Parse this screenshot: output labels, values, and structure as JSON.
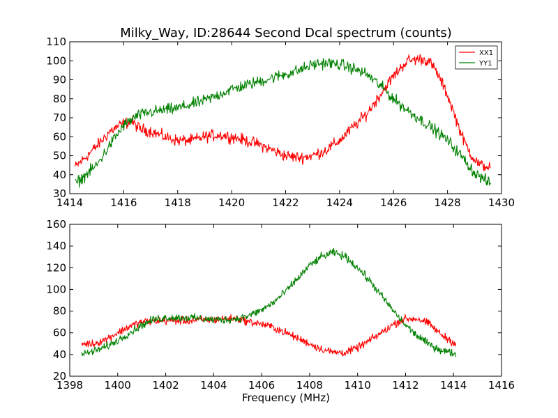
{
  "chart_data": [
    {
      "type": "line",
      "title": "Milky_Way, ID:28644 Second Dcal spectrum (counts)",
      "xlabel": "",
      "ylabel": "",
      "xlim": [
        1414,
        1430
      ],
      "ylim": [
        30,
        110
      ],
      "xticks": [
        "1414",
        "1416",
        "1418",
        "1420",
        "1422",
        "1424",
        "1426",
        "1428",
        "1430"
      ],
      "yticks": [
        "30",
        "40",
        "50",
        "60",
        "70",
        "80",
        "90",
        "100",
        "110"
      ],
      "legend": "top-right",
      "x_range": [
        1414.2,
        1429.6
      ],
      "noise": 2.2,
      "series": [
        {
          "name": "XX1",
          "color": "#ff0000",
          "points": [
            [
              1414.2,
              44
            ],
            [
              1414.5,
              48
            ],
            [
              1415.0,
              55
            ],
            [
              1415.5,
              63
            ],
            [
              1416.0,
              67
            ],
            [
              1416.3,
              68
            ],
            [
              1416.6,
              64
            ],
            [
              1417.0,
              63
            ],
            [
              1417.5,
              60
            ],
            [
              1418.0,
              58
            ],
            [
              1418.5,
              58
            ],
            [
              1419.0,
              60
            ],
            [
              1419.5,
              61
            ],
            [
              1420.0,
              60
            ],
            [
              1420.5,
              58
            ],
            [
              1421.0,
              56
            ],
            [
              1421.5,
              53
            ],
            [
              1422.0,
              50
            ],
            [
              1422.5,
              49
            ],
            [
              1423.0,
              50
            ],
            [
              1423.5,
              53
            ],
            [
              1424.0,
              58
            ],
            [
              1424.5,
              65
            ],
            [
              1425.0,
              72
            ],
            [
              1425.5,
              82
            ],
            [
              1426.0,
              92
            ],
            [
              1426.5,
              100
            ],
            [
              1427.0,
              101
            ],
            [
              1427.3,
              100
            ],
            [
              1427.6,
              94
            ],
            [
              1428.0,
              82
            ],
            [
              1428.3,
              70
            ],
            [
              1428.6,
              58
            ],
            [
              1428.9,
              50
            ],
            [
              1429.2,
              45
            ],
            [
              1429.6,
              44
            ]
          ]
        },
        {
          "name": "YY1",
          "color": "#008000",
          "points": [
            [
              1414.2,
              35
            ],
            [
              1414.6,
              40
            ],
            [
              1415.0,
              45
            ],
            [
              1415.5,
              56
            ],
            [
              1416.0,
              66
            ],
            [
              1416.5,
              71
            ],
            [
              1417.0,
              73
            ],
            [
              1417.5,
              74
            ],
            [
              1418.0,
              75
            ],
            [
              1418.5,
              77
            ],
            [
              1419.0,
              79
            ],
            [
              1419.5,
              82
            ],
            [
              1420.0,
              85
            ],
            [
              1420.5,
              87
            ],
            [
              1421.0,
              89
            ],
            [
              1421.5,
              91
            ],
            [
              1422.0,
              93
            ],
            [
              1422.5,
              95
            ],
            [
              1423.0,
              98
            ],
            [
              1423.5,
              99
            ],
            [
              1424.0,
              98
            ],
            [
              1424.5,
              96
            ],
            [
              1425.0,
              93
            ],
            [
              1425.5,
              87
            ],
            [
              1426.0,
              80
            ],
            [
              1426.5,
              74
            ],
            [
              1427.0,
              69
            ],
            [
              1427.5,
              64
            ],
            [
              1428.0,
              58
            ],
            [
              1428.5,
              50
            ],
            [
              1429.0,
              41
            ],
            [
              1429.6,
              35
            ]
          ]
        }
      ]
    },
    {
      "type": "line",
      "title": "",
      "xlabel": "Frequency (MHz)",
      "ylabel": "",
      "xlim": [
        1398,
        1416
      ],
      "ylim": [
        20,
        160
      ],
      "xticks": [
        "1398",
        "1400",
        "1402",
        "1404",
        "1406",
        "1408",
        "1410",
        "1412",
        "1414",
        "1416"
      ],
      "yticks": [
        "20",
        "40",
        "60",
        "80",
        "100",
        "120",
        "140",
        "160"
      ],
      "x_range": [
        1398.5,
        1414.1
      ],
      "noise": 2.6,
      "series": [
        {
          "color": "#ff0000",
          "points": [
            [
              1398.5,
              50
            ],
            [
              1399.0,
              50
            ],
            [
              1399.5,
              54
            ],
            [
              1400.0,
              60
            ],
            [
              1400.5,
              66
            ],
            [
              1401.0,
              70
            ],
            [
              1401.5,
              71
            ],
            [
              1402.0,
              71
            ],
            [
              1402.5,
              71
            ],
            [
              1403.0,
              71
            ],
            [
              1403.5,
              72
            ],
            [
              1404.0,
              72
            ],
            [
              1404.5,
              73
            ],
            [
              1405.0,
              73
            ],
            [
              1405.5,
              70
            ],
            [
              1406.0,
              68
            ],
            [
              1406.5,
              65
            ],
            [
              1407.0,
              60
            ],
            [
              1407.5,
              55
            ],
            [
              1408.0,
              50
            ],
            [
              1408.5,
              45
            ],
            [
              1409.0,
              42
            ],
            [
              1409.5,
              42
            ],
            [
              1410.0,
              46
            ],
            [
              1410.5,
              53
            ],
            [
              1411.0,
              60
            ],
            [
              1411.5,
              68
            ],
            [
              1412.0,
              73
            ],
            [
              1412.5,
              73
            ],
            [
              1413.0,
              68
            ],
            [
              1413.5,
              58
            ],
            [
              1414.1,
              50
            ]
          ]
        },
        {
          "color": "#008000",
          "points": [
            [
              1398.5,
              40
            ],
            [
              1399.0,
              43
            ],
            [
              1399.5,
              47
            ],
            [
              1400.0,
              53
            ],
            [
              1400.5,
              60
            ],
            [
              1401.0,
              67
            ],
            [
              1401.5,
              72
            ],
            [
              1402.0,
              74
            ],
            [
              1402.5,
              74
            ],
            [
              1403.0,
              74
            ],
            [
              1403.5,
              73
            ],
            [
              1404.0,
              72
            ],
            [
              1404.5,
              72
            ],
            [
              1405.0,
              73
            ],
            [
              1405.5,
              76
            ],
            [
              1406.0,
              81
            ],
            [
              1406.5,
              88
            ],
            [
              1407.0,
              98
            ],
            [
              1407.5,
              110
            ],
            [
              1408.0,
              122
            ],
            [
              1408.5,
              130
            ],
            [
              1409.0,
              134
            ],
            [
              1409.5,
              130
            ],
            [
              1410.0,
              120
            ],
            [
              1410.5,
              108
            ],
            [
              1411.0,
              94
            ],
            [
              1411.5,
              80
            ],
            [
              1412.0,
              67
            ],
            [
              1412.5,
              57
            ],
            [
              1413.0,
              49
            ],
            [
              1413.5,
              44
            ],
            [
              1414.0,
              41
            ]
          ]
        }
      ]
    }
  ]
}
